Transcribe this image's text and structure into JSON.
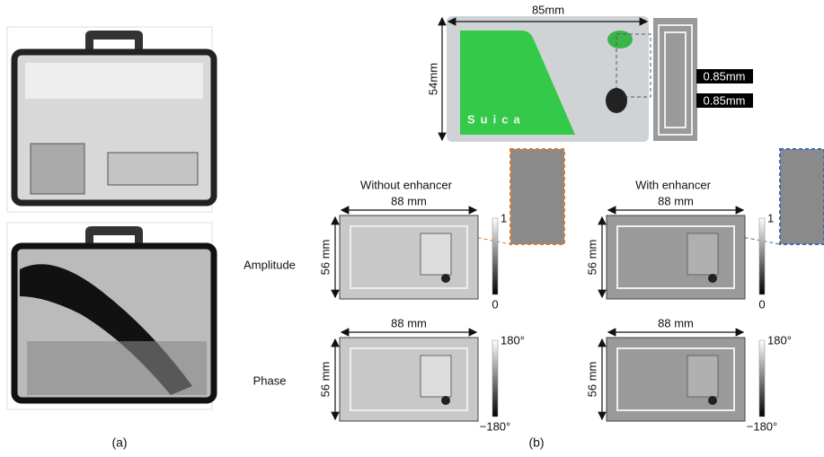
{
  "panel_a": {
    "label": "(a)"
  },
  "panel_b": {
    "label": "(b)",
    "card": {
      "width": "85mm",
      "height": "54mm",
      "brand": "Suica",
      "trace_widths": [
        "0.85mm",
        "0.85mm"
      ]
    },
    "row_labels": [
      "Amplitude",
      "Phase"
    ],
    "columns": [
      {
        "title": "Without enhancer",
        "amplitude": {
          "width": "88 mm",
          "height": "56 mm",
          "scale_max": "1",
          "scale_min": "0"
        },
        "phase": {
          "width": "88 mm",
          "height": "56 mm",
          "scale_max": "180°",
          "scale_min": "−180°"
        }
      },
      {
        "title": "With enhancer",
        "amplitude": {
          "width": "88 mm",
          "height": "56 mm",
          "scale_max": "1",
          "scale_min": "0"
        },
        "phase": {
          "width": "88 mm",
          "height": "56 mm",
          "scale_max": "180°",
          "scale_min": "−180°"
        }
      }
    ]
  }
}
